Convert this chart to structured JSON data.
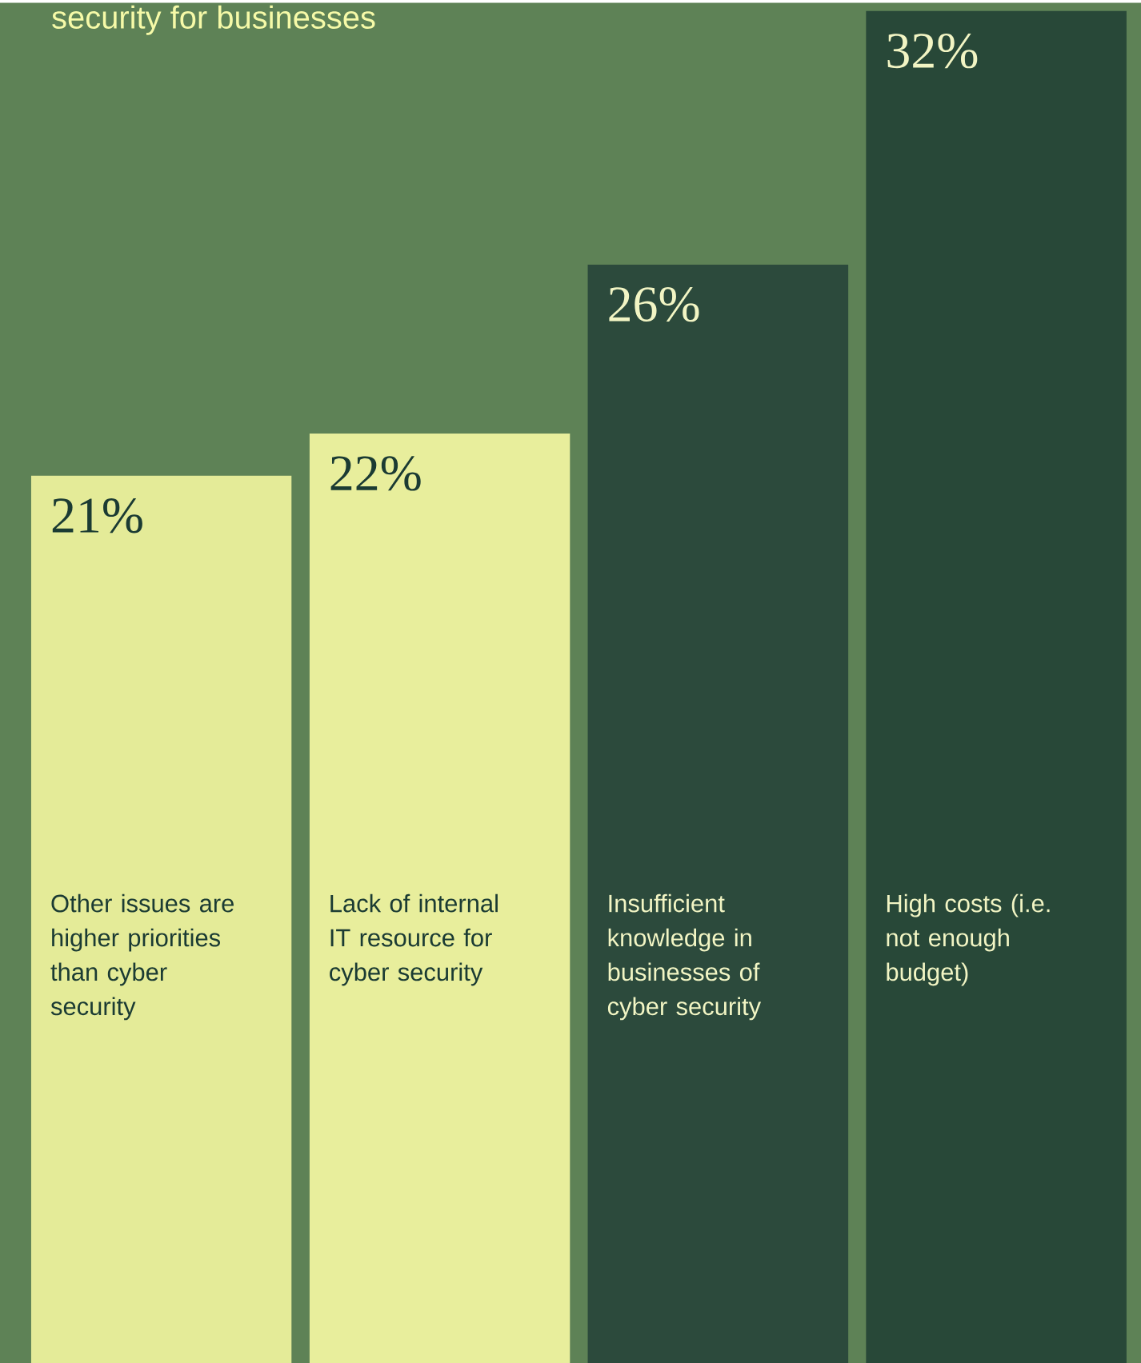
{
  "chart_data": {
    "type": "bar",
    "title": "security for businesses",
    "categories": [
      "Other issues are higher priorities than cyber security",
      "Lack of internal IT resource for cyber security",
      "Insufficient knowledge in businesses of cyber security",
      "High costs (i.e. not enough budget)"
    ],
    "values": [
      21,
      22,
      26,
      32
    ],
    "value_labels": [
      "21%",
      "22%",
      "26%",
      "32%"
    ],
    "colors": [
      "#e4eb98",
      "#e8ee9c",
      "#2c4a3c",
      "#284838"
    ]
  }
}
